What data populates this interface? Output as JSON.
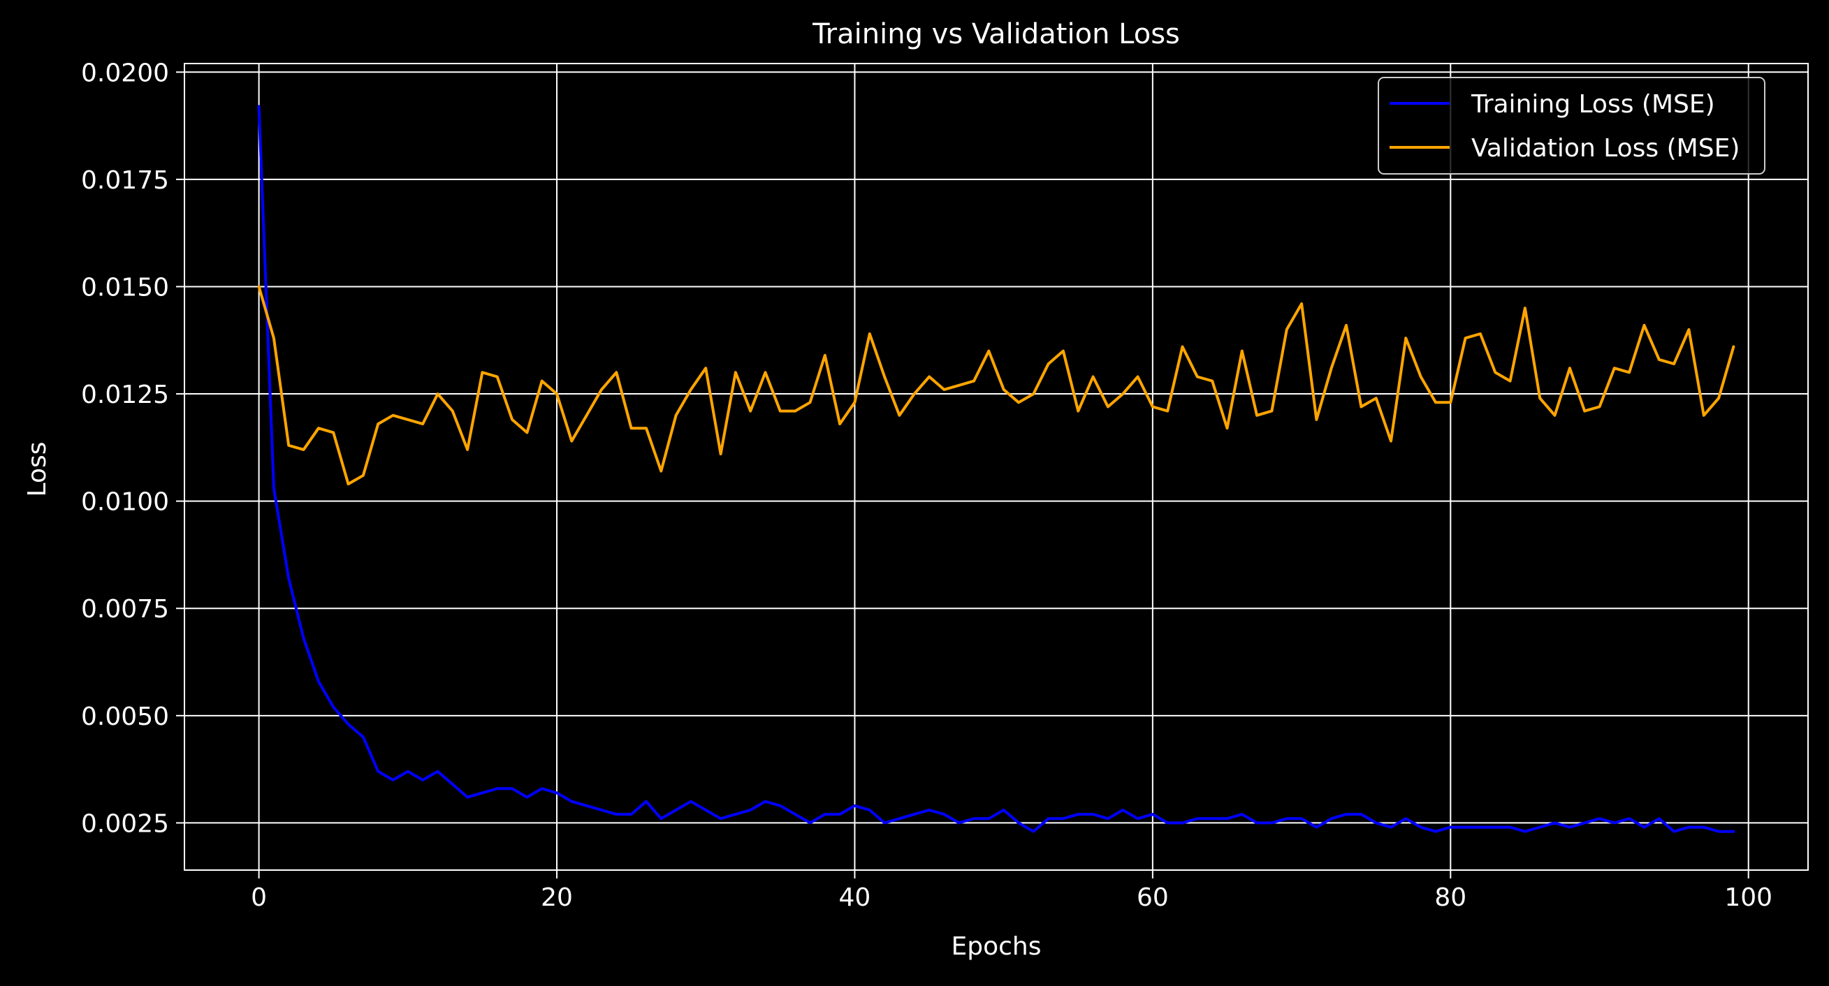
{
  "chart_data": {
    "type": "line",
    "title": "Training vs Validation Loss",
    "xlabel": "Epochs",
    "ylabel": "Loss",
    "xlim": [
      -5,
      104
    ],
    "ylim": [
      0.0014,
      0.0202
    ],
    "x_ticks": [
      0,
      20,
      40,
      60,
      80,
      100
    ],
    "x_tick_labels": [
      "0",
      "20",
      "40",
      "60",
      "80",
      "100"
    ],
    "y_ticks": [
      0.0025,
      0.005,
      0.0075,
      0.01,
      0.0125,
      0.015,
      0.0175,
      0.02
    ],
    "y_tick_labels": [
      "0.0025",
      "0.0050",
      "0.0075",
      "0.0100",
      "0.0125",
      "0.0150",
      "0.0175",
      "0.0200"
    ],
    "grid": true,
    "legend_position": "top-right",
    "background": "#000000",
    "series": [
      {
        "name": "Training Loss (MSE)",
        "color": "#0000ff",
        "x": [
          0,
          1,
          2,
          3,
          4,
          5,
          6,
          7,
          8,
          9,
          10,
          11,
          12,
          13,
          14,
          15,
          16,
          17,
          18,
          19,
          20,
          21,
          22,
          23,
          24,
          25,
          26,
          27,
          28,
          29,
          30,
          31,
          32,
          33,
          34,
          35,
          36,
          37,
          38,
          39,
          40,
          41,
          42,
          43,
          44,
          45,
          46,
          47,
          48,
          49,
          50,
          51,
          52,
          53,
          54,
          55,
          56,
          57,
          58,
          59,
          60,
          61,
          62,
          63,
          64,
          65,
          66,
          67,
          68,
          69,
          70,
          71,
          72,
          73,
          74,
          75,
          76,
          77,
          78,
          79,
          80,
          81,
          82,
          83,
          84,
          85,
          86,
          87,
          88,
          89,
          90,
          91,
          92,
          93,
          94,
          95,
          96,
          97,
          98,
          99
        ],
        "values": [
          0.0192,
          0.0103,
          0.0082,
          0.0068,
          0.0058,
          0.0052,
          0.0048,
          0.0045,
          0.0037,
          0.0035,
          0.0037,
          0.0035,
          0.0037,
          0.0034,
          0.0031,
          0.0032,
          0.0033,
          0.0033,
          0.0031,
          0.0033,
          0.0032,
          0.003,
          0.0029,
          0.0028,
          0.0027,
          0.0027,
          0.003,
          0.0026,
          0.0028,
          0.003,
          0.0028,
          0.0026,
          0.0027,
          0.0028,
          0.003,
          0.0029,
          0.0027,
          0.0025,
          0.0027,
          0.0027,
          0.0029,
          0.0028,
          0.0025,
          0.0026,
          0.0027,
          0.0028,
          0.0027,
          0.0025,
          0.0026,
          0.0026,
          0.0028,
          0.0025,
          0.0023,
          0.0026,
          0.0026,
          0.0027,
          0.0027,
          0.0026,
          0.0028,
          0.0026,
          0.0027,
          0.0025,
          0.0025,
          0.0026,
          0.0026,
          0.0026,
          0.0027,
          0.0025,
          0.0025,
          0.0026,
          0.0026,
          0.0024,
          0.0026,
          0.0027,
          0.0027,
          0.0025,
          0.0024,
          0.0026,
          0.0024,
          0.0023,
          0.0024,
          0.0024,
          0.0024,
          0.0024,
          0.0024,
          0.0023,
          0.0024,
          0.0025,
          0.0024,
          0.0025,
          0.0026,
          0.0025,
          0.0026,
          0.0024,
          0.0026,
          0.0023,
          0.0024,
          0.0024,
          0.0023,
          0.0023
        ]
      },
      {
        "name": "Validation Loss (MSE)",
        "color": "#ffa500",
        "x": [
          0,
          1,
          2,
          3,
          4,
          5,
          6,
          7,
          8,
          9,
          10,
          11,
          12,
          13,
          14,
          15,
          16,
          17,
          18,
          19,
          20,
          21,
          22,
          23,
          24,
          25,
          26,
          27,
          28,
          29,
          30,
          31,
          32,
          33,
          34,
          35,
          36,
          37,
          38,
          39,
          40,
          41,
          42,
          43,
          44,
          45,
          46,
          47,
          48,
          49,
          50,
          51,
          52,
          53,
          54,
          55,
          56,
          57,
          58,
          59,
          60,
          61,
          62,
          63,
          64,
          65,
          66,
          67,
          68,
          69,
          70,
          71,
          72,
          73,
          74,
          75,
          76,
          77,
          78,
          79,
          80,
          81,
          82,
          83,
          84,
          85,
          86,
          87,
          88,
          89,
          90,
          91,
          92,
          93,
          94,
          95,
          96,
          97,
          98,
          99
        ],
        "values": [
          0.015,
          0.0138,
          0.0113,
          0.0112,
          0.0117,
          0.0116,
          0.0104,
          0.0106,
          0.0118,
          0.012,
          0.0119,
          0.0118,
          0.0125,
          0.0121,
          0.0112,
          0.013,
          0.0129,
          0.0119,
          0.0116,
          0.0128,
          0.0125,
          0.0114,
          0.012,
          0.0126,
          0.013,
          0.0117,
          0.0117,
          0.0107,
          0.012,
          0.0126,
          0.0131,
          0.0111,
          0.013,
          0.0121,
          0.013,
          0.0121,
          0.0121,
          0.0123,
          0.0134,
          0.0118,
          0.0123,
          0.0139,
          0.0129,
          0.012,
          0.0125,
          0.0129,
          0.0126,
          0.0127,
          0.0128,
          0.0135,
          0.0126,
          0.0123,
          0.0125,
          0.0132,
          0.0135,
          0.0121,
          0.0129,
          0.0122,
          0.0125,
          0.0129,
          0.0122,
          0.0121,
          0.0136,
          0.0129,
          0.0128,
          0.0117,
          0.0135,
          0.012,
          0.0121,
          0.014,
          0.0146,
          0.0119,
          0.0131,
          0.0141,
          0.0122,
          0.0124,
          0.0114,
          0.0138,
          0.0129,
          0.0123,
          0.0123,
          0.0138,
          0.0139,
          0.013,
          0.0128,
          0.0145,
          0.0124,
          0.012,
          0.0131,
          0.0121,
          0.0122,
          0.0131,
          0.013,
          0.0141,
          0.0133,
          0.0132,
          0.014,
          0.012,
          0.0124,
          0.0136
        ]
      }
    ]
  }
}
